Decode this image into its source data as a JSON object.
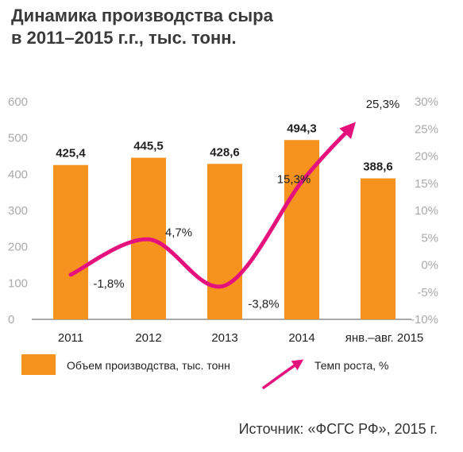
{
  "title": {
    "line1": "Динамика производства сыра",
    "line2": "в 2011–2015 г.г., тыс. тонн."
  },
  "source": "Источник: «ФСГС РФ», 2015 г.",
  "colors": {
    "bar": "#f6921e",
    "line": "#e5127d"
  },
  "chart_data": {
    "type": "bar",
    "categories": [
      "2011",
      "2012",
      "2013",
      "2014",
      "янв.–авг. 2015"
    ],
    "series": [
      {
        "name": "Объем производства, тыс. тонн",
        "type": "bar",
        "axis": "left",
        "values": [
          425.4,
          445.5,
          428.6,
          494.3,
          388.6
        ],
        "labels": [
          "425,4",
          "445,5",
          "428,6",
          "494,3",
          "388,6"
        ]
      },
      {
        "name": "Темп роста, %",
        "type": "line",
        "axis": "right",
        "values": [
          -1.8,
          4.7,
          -3.8,
          15.3,
          25.3
        ],
        "labels": [
          "-1,8%",
          "4,7%",
          "-3,8%",
          "15,3%",
          "25,3%"
        ]
      }
    ],
    "y_left": {
      "min": 0,
      "max": 600,
      "ticks": [
        "0",
        "100",
        "200",
        "300",
        "400",
        "500",
        "600"
      ]
    },
    "y_right": {
      "min": -10,
      "max": 30,
      "ticks": [
        "-10%",
        "-5%",
        "0%",
        "5%",
        "10%",
        "15%",
        "20%",
        "25%",
        "30%"
      ]
    },
    "legend": "bottom"
  }
}
